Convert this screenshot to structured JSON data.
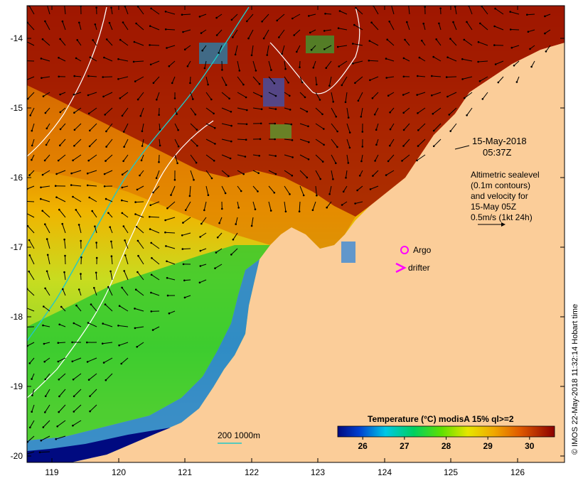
{
  "map": {
    "lat_ticks": [
      "-14",
      "-15",
      "-16",
      "-17",
      "-18",
      "-19",
      "-20"
    ],
    "lon_ticks": [
      "119",
      "120",
      "121",
      "122",
      "123",
      "124",
      "125",
      "126"
    ],
    "date": "15-May-2018",
    "time": "05:37Z",
    "altimetry_lines": [
      "Altimetric sealevel",
      "(0.1m contours)",
      "and velocity for",
      "15-May 05Z",
      "0.5m/s (1kt 24h)"
    ],
    "argo_label": "Argo",
    "drifter_label": "drifter",
    "depth_label": "200  1000m",
    "credit": "© IMOS 22-May-2018 11:32:14 Hobart time"
  },
  "colorbar": {
    "title": "Temperature (°C) modisA 15% ql>=2",
    "ticks": [
      "26",
      "27",
      "28",
      "29",
      "30"
    ],
    "min": 25.4,
    "max": 30.6
  },
  "colors": {
    "land": "#fbcd99",
    "cold": "#000a80",
    "cool": "#00c8e6",
    "mid": "#14c814",
    "warm": "#f0d200",
    "hot": "#eb8200",
    "hottest": "#960000",
    "isobath_200": "#20c8c8",
    "isobath_1000": "#ffffff",
    "argo": "#ff00ff",
    "drifter": "#ff00ff"
  }
}
